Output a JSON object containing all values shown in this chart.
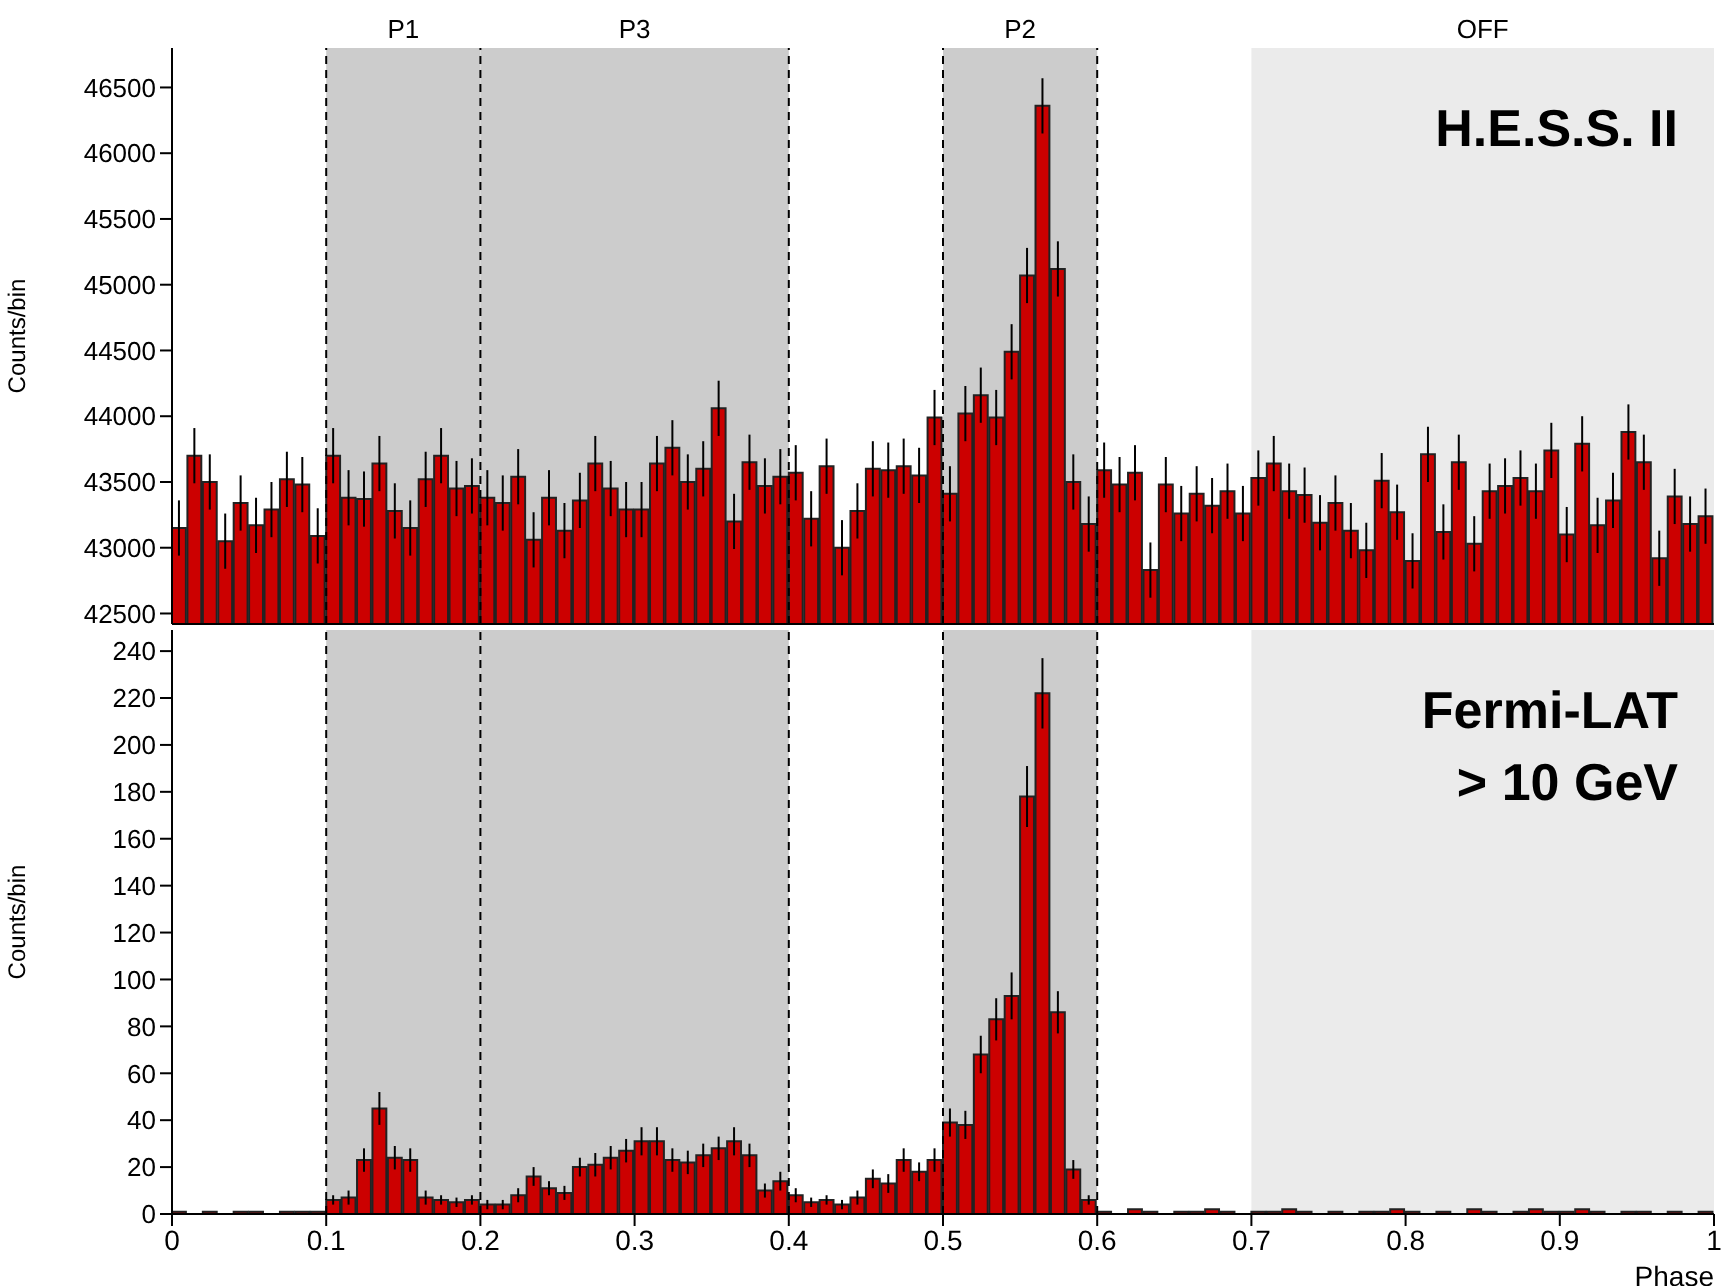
{
  "chart_data": [
    {
      "type": "histogram",
      "ylabel": "Counts/bin",
      "color": "#cc0000",
      "tick_labels": "y",
      "bins": [
        0,
        0.01,
        0.02,
        0.03,
        0.04,
        0.05,
        0.06,
        0.07,
        0.08,
        0.09,
        0.1,
        0.11,
        0.12,
        0.13,
        0.14,
        0.15,
        0.16,
        0.17,
        0.18,
        0.19,
        0.2,
        0.21,
        0.22,
        0.23,
        0.24,
        0.25,
        0.26,
        0.27,
        0.28,
        0.29,
        0.3,
        0.31,
        0.32,
        0.33,
        0.34,
        0.35,
        0.36,
        0.37,
        0.38,
        0.39,
        0.4,
        0.41,
        0.42,
        0.43,
        0.44,
        0.45,
        0.46,
        0.47,
        0.48,
        0.49,
        0.5,
        0.51,
        0.52,
        0.53,
        0.54,
        0.55,
        0.56,
        0.57,
        0.58,
        0.59,
        0.6,
        0.61,
        0.62,
        0.63,
        0.64,
        0.65,
        0.66,
        0.67,
        0.68,
        0.69,
        0.7,
        0.71,
        0.72,
        0.73,
        0.74,
        0.75,
        0.76,
        0.77,
        0.78,
        0.79,
        0.8,
        0.81,
        0.82,
        0.83,
        0.84,
        0.85,
        0.86,
        0.87,
        0.88,
        0.89,
        0.9,
        0.91,
        0.92,
        0.93,
        0.94,
        0.95,
        0.96,
        0.97,
        0.98,
        0.99,
        1
      ],
      "values": [
        43150,
        43700,
        43500,
        43050,
        43340,
        43170,
        43290,
        43520,
        43480,
        43090,
        43700,
        43380,
        43370,
        43640,
        43280,
        43150,
        43520,
        43700,
        43450,
        43470,
        43380,
        43340,
        43540,
        43060,
        43380,
        43130,
        43360,
        43640,
        43450,
        43290,
        43290,
        43640,
        43760,
        43500,
        43600,
        44060,
        43200,
        43650,
        43470,
        43540,
        43570,
        43220,
        43620,
        43000,
        43280,
        43600,
        43590,
        43620,
        43550,
        43990,
        43410,
        44020,
        44160,
        43990,
        44490,
        45070,
        46360,
        45120,
        43500,
        43180,
        43590,
        43480,
        43570,
        42830,
        43480,
        43260,
        43410,
        43320,
        43430,
        43260,
        43530,
        43640,
        43430,
        43400,
        43190,
        43340,
        43130,
        42980,
        43510,
        43270,
        42900,
        43710,
        43120,
        43650,
        43030,
        43430,
        43470,
        43530,
        43430,
        43740,
        43100,
        43790,
        43170,
        43360,
        43880,
        43650,
        42920,
        43390,
        43180,
        43240
      ],
      "errors": [
        210,
        210,
        210,
        210,
        210,
        210,
        210,
        210,
        210,
        210,
        210,
        210,
        210,
        210,
        210,
        210,
        210,
        210,
        210,
        210,
        210,
        210,
        210,
        210,
        210,
        210,
        210,
        210,
        210,
        210,
        210,
        210,
        210,
        210,
        210,
        210,
        210,
        210,
        210,
        210,
        210,
        210,
        210,
        210,
        210,
        210,
        210,
        210,
        210,
        210,
        210,
        210,
        210,
        210,
        210,
        210,
        210,
        210,
        210,
        210,
        210,
        210,
        210,
        210,
        210,
        210,
        210,
        210,
        210,
        210,
        210,
        210,
        210,
        210,
        210,
        210,
        210,
        210,
        210,
        210,
        210,
        210,
        210,
        210,
        210,
        210,
        210,
        210,
        210,
        210,
        210,
        210,
        210,
        210,
        210,
        210,
        210,
        210,
        210,
        210
      ],
      "xlim": [
        0,
        1
      ],
      "xticks": [
        0,
        0.1,
        0.2,
        0.3,
        0.4,
        0.5,
        0.6,
        0.7,
        0.8,
        0.9,
        1
      ],
      "ylim": [
        42420,
        46800
      ],
      "yticks": [
        42500,
        43000,
        43500,
        44000,
        44500,
        45000,
        45500,
        46000,
        46500
      ],
      "bands": [
        {
          "axis": "x",
          "from": 0.1,
          "to": 0.2,
          "label": "P1",
          "color": "#cccccc"
        },
        {
          "axis": "x",
          "from": 0.2,
          "to": 0.4,
          "label": "P3",
          "color": "#cccccc"
        },
        {
          "axis": "x",
          "from": 0.5,
          "to": 0.6,
          "label": "P2",
          "color": "#cccccc"
        },
        {
          "axis": "x",
          "from": 0.7,
          "to": 1,
          "label": "OFF",
          "color": "#ebebeb"
        }
      ],
      "ref_lines": [
        {
          "axis": "x",
          "value": 0.1,
          "color": "#000000",
          "line_style": "dashed"
        },
        {
          "axis": "x",
          "value": 0.2,
          "color": "#000000",
          "line_style": "dashed"
        },
        {
          "axis": "x",
          "value": 0.4,
          "color": "#000000",
          "line_style": "dashed"
        },
        {
          "axis": "x",
          "value": 0.5,
          "color": "#000000",
          "line_style": "dashed"
        },
        {
          "axis": "x",
          "value": 0.6,
          "color": "#000000",
          "line_style": "dashed"
        }
      ],
      "annotations": [
        "H.E.S.S. II"
      ]
    },
    {
      "type": "histogram",
      "ylabel": "Counts/bin",
      "xlabel": "Phase",
      "color": "#cc0000",
      "bins": [
        0,
        0.01,
        0.02,
        0.03,
        0.04,
        0.05,
        0.06,
        0.07,
        0.08,
        0.09,
        0.1,
        0.11,
        0.12,
        0.13,
        0.14,
        0.15,
        0.16,
        0.17,
        0.18,
        0.19,
        0.2,
        0.21,
        0.22,
        0.23,
        0.24,
        0.25,
        0.26,
        0.27,
        0.28,
        0.29,
        0.3,
        0.31,
        0.32,
        0.33,
        0.34,
        0.35,
        0.36,
        0.37,
        0.38,
        0.39,
        0.4,
        0.41,
        0.42,
        0.43,
        0.44,
        0.45,
        0.46,
        0.47,
        0.48,
        0.49,
        0.5,
        0.51,
        0.52,
        0.53,
        0.54,
        0.55,
        0.56,
        0.57,
        0.58,
        0.59,
        0.6,
        0.61,
        0.62,
        0.63,
        0.64,
        0.65,
        0.66,
        0.67,
        0.68,
        0.69,
        0.7,
        0.71,
        0.72,
        0.73,
        0.74,
        0.75,
        0.76,
        0.77,
        0.78,
        0.79,
        0.8,
        0.81,
        0.82,
        0.83,
        0.84,
        0.85,
        0.86,
        0.87,
        0.88,
        0.89,
        0.9,
        0.91,
        0.92,
        0.93,
        0.94,
        0.95,
        0.96,
        0.97,
        0.98,
        0.99,
        1
      ],
      "values": [
        1,
        0,
        1,
        0,
        1,
        1,
        0,
        1,
        1,
        1,
        6,
        7,
        23,
        45,
        24,
        23,
        7,
        6,
        5,
        6,
        4,
        4,
        8,
        16,
        11,
        9,
        20,
        21,
        24,
        27,
        31,
        31,
        23,
        22,
        25,
        28,
        31,
        25,
        10,
        14,
        8,
        5,
        6,
        4,
        7,
        15,
        13,
        23,
        18,
        23,
        39,
        38,
        68,
        83,
        93,
        178,
        222,
        86,
        19,
        6,
        1,
        0,
        2,
        1,
        0,
        1,
        1,
        2,
        1,
        0,
        1,
        1,
        2,
        1,
        0,
        1,
        0,
        1,
        1,
        2,
        1,
        0,
        1,
        0,
        2,
        1,
        0,
        1,
        2,
        1,
        1,
        2,
        1,
        0,
        1,
        1,
        0,
        1,
        0,
        1
      ],
      "errors": [
        null,
        null,
        null,
        null,
        null,
        null,
        null,
        null,
        null,
        null,
        2,
        3,
        5,
        7,
        5,
        5,
        3,
        2,
        2,
        2,
        2,
        2,
        3,
        4,
        3,
        3,
        4,
        5,
        5,
        5,
        6,
        6,
        5,
        5,
        5,
        5,
        6,
        5,
        3,
        4,
        3,
        2,
        2,
        2,
        3,
        4,
        4,
        5,
        4,
        5,
        6,
        6,
        8,
        9,
        10,
        13,
        15,
        9,
        4,
        2,
        null,
        null,
        null,
        null,
        null,
        null,
        null,
        null,
        null,
        null,
        null,
        null,
        null,
        null,
        null,
        null,
        null,
        null,
        null,
        null,
        null,
        null,
        null,
        null,
        null,
        null,
        null,
        null,
        null,
        null,
        null,
        null,
        null,
        null,
        null,
        null,
        null,
        null,
        null,
        null
      ],
      "xlim": [
        0,
        1
      ],
      "xticks": [
        0,
        0.1,
        0.2,
        0.3,
        0.4,
        0.5,
        0.6,
        0.7,
        0.8,
        0.9,
        1
      ],
      "ylim": [
        0,
        249
      ],
      "yticks": [
        0,
        20,
        40,
        60,
        80,
        100,
        120,
        140,
        160,
        180,
        200,
        220,
        240
      ],
      "bands": [
        {
          "axis": "x",
          "from": 0.1,
          "to": 0.2,
          "color": "#cccccc"
        },
        {
          "axis": "x",
          "from": 0.2,
          "to": 0.4,
          "color": "#cccccc"
        },
        {
          "axis": "x",
          "from": 0.5,
          "to": 0.6,
          "color": "#cccccc"
        },
        {
          "axis": "x",
          "from": 0.7,
          "to": 1,
          "color": "#ebebeb"
        }
      ],
      "ref_lines": [
        {
          "axis": "x",
          "value": 0.1,
          "color": "#000000",
          "line_style": "dashed"
        },
        {
          "axis": "x",
          "value": 0.2,
          "color": "#000000",
          "line_style": "dashed"
        },
        {
          "axis": "x",
          "value": 0.4,
          "color": "#000000",
          "line_style": "dashed"
        },
        {
          "axis": "x",
          "value": 0.5,
          "color": "#000000",
          "line_style": "dashed"
        },
        {
          "axis": "x",
          "value": 0.6,
          "color": "#000000",
          "line_style": "dashed"
        }
      ],
      "annotations": [
        "Fermi-LAT\n> 10 GeV"
      ]
    }
  ]
}
